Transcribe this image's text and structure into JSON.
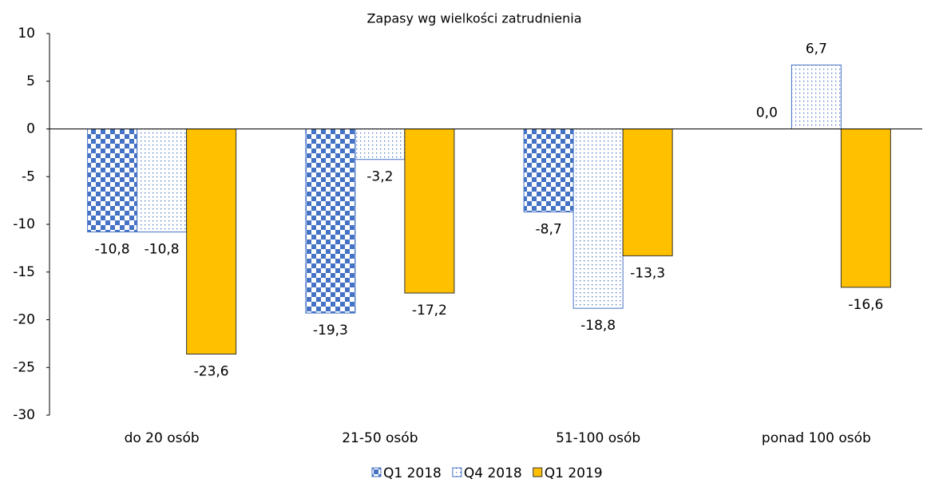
{
  "chart_data": {
    "type": "bar",
    "title": "Zapasy wg wielkości zatrudnienia",
    "categories": [
      "do 20 osób",
      "21-50 osób",
      "51-100 osób",
      "ponad 100 osób"
    ],
    "series": [
      {
        "name": "Q1 2018",
        "color": "#4472c4",
        "pattern": "checker",
        "values": [
          -10.8,
          -19.3,
          -8.7,
          0.0
        ],
        "value_labels": [
          "-10,8",
          "-19,3",
          "-8,7",
          "0,0"
        ]
      },
      {
        "name": "Q4 2018",
        "color": "#4472c4",
        "pattern": "dots",
        "values": [
          -10.8,
          -3.2,
          -18.8,
          6.7
        ],
        "value_labels": [
          "-10,8",
          "-3,2",
          "-18,8",
          "6,7"
        ]
      },
      {
        "name": "Q1 2019",
        "color": "#ffc000",
        "pattern": "solid",
        "values": [
          -23.6,
          -17.2,
          -13.3,
          -16.6
        ],
        "value_labels": [
          "-23,6",
          "-17,2",
          "-13,3",
          "-16,6"
        ]
      }
    ],
    "ylim": [
      -30,
      10
    ],
    "yticks": [
      -30,
      -25,
      -20,
      -15,
      -10,
      -5,
      0,
      5,
      10
    ],
    "legend": "bottom"
  }
}
